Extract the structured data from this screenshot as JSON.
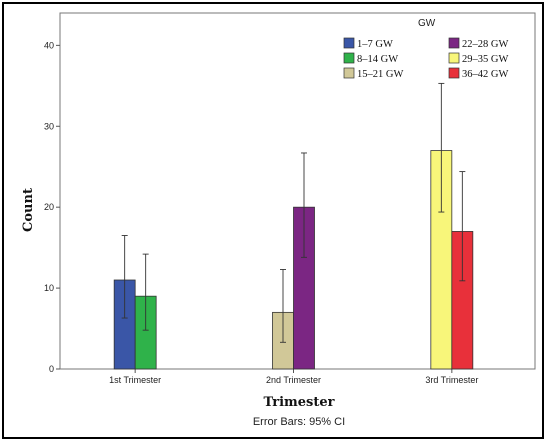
{
  "chart_data": {
    "type": "bar",
    "ylabel": "Count",
    "xlabel": "Trimester",
    "ylim": [
      0,
      44
    ],
    "yticks": [
      0,
      10,
      20,
      30,
      40
    ],
    "categories": [
      "1st Trimester",
      "2nd Trimester",
      "3rd Trimester"
    ],
    "legend_title": "GW",
    "legend_position": "top-right",
    "footnote": "Error Bars: 95% CI",
    "series": [
      {
        "name": "1–7 GW",
        "color": "#3a56a7",
        "category": "1st Trimester",
        "value": 11,
        "ci": [
          6.3,
          16.5
        ]
      },
      {
        "name": "8–14 GW",
        "color": "#2fb24a",
        "category": "1st Trimester",
        "value": 9,
        "ci": [
          4.8,
          14.2
        ]
      },
      {
        "name": "15–21 GW",
        "color": "#d1c898",
        "category": "2nd Trimester",
        "value": 7,
        "ci": [
          3.3,
          12.3
        ]
      },
      {
        "name": "22–28 GW",
        "color": "#7b2683",
        "category": "2nd Trimester",
        "value": 20,
        "ci": [
          13.8,
          26.7
        ]
      },
      {
        "name": "29–35 GW",
        "color": "#f8f67a",
        "category": "3rd Trimester",
        "value": 27,
        "ci": [
          19.4,
          35.3
        ]
      },
      {
        "name": "36–42 GW",
        "color": "#e8303a",
        "category": "3rd Trimester",
        "value": 17,
        "ci": [
          10.9,
          24.4
        ]
      }
    ]
  }
}
